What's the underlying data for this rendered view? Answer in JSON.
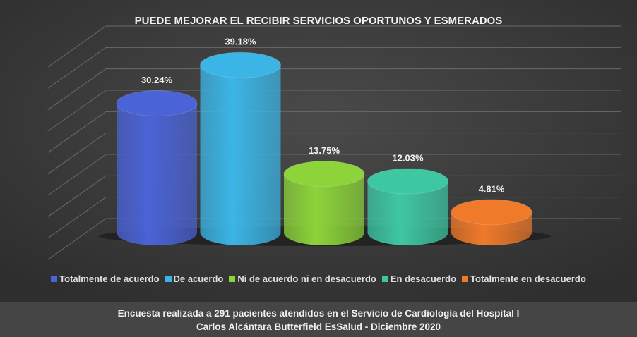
{
  "chart_data": {
    "type": "bar3d",
    "title": "PUEDE MEJORAR  EL RECIBIR SERVICIOS OPORTUNOS Y ESMERADOS",
    "series": [
      {
        "name": "Totalmente de acuerdo",
        "color": "#4a63d6",
        "values": [
          30.24
        ],
        "value_labels": [
          "30.24%"
        ]
      },
      {
        "name": "De acuerdo",
        "color": "#3bb5e6",
        "values": [
          39.18
        ],
        "value_labels": [
          "39.18%"
        ]
      },
      {
        "name": "Ni de acuerdo ni en desacuerdo",
        "color": "#8cd43a",
        "values": [
          13.75
        ],
        "value_labels": [
          "13.75%"
        ]
      },
      {
        "name": "En desacuerdo",
        "color": "#3ec7a3",
        "values": [
          12.03
        ],
        "value_labels": [
          "12.03%"
        ]
      },
      {
        "name": "Totalmente en desacuerdo",
        "color": "#ef7a2a",
        "values": [
          4.81
        ],
        "value_labels": [
          "4.81%"
        ]
      }
    ],
    "ylim": [
      0,
      45
    ],
    "yticks": [
      0,
      5,
      10,
      15,
      20,
      25,
      30,
      35,
      40,
      45
    ],
    "grid": true,
    "caption": [
      "Encuesta realizada a 291 pacientes atendidos en el Servicio de Cardiología del Hospital I",
      "Carlos Alcántara Butterfield EsSalud - Diciembre 2020"
    ]
  }
}
